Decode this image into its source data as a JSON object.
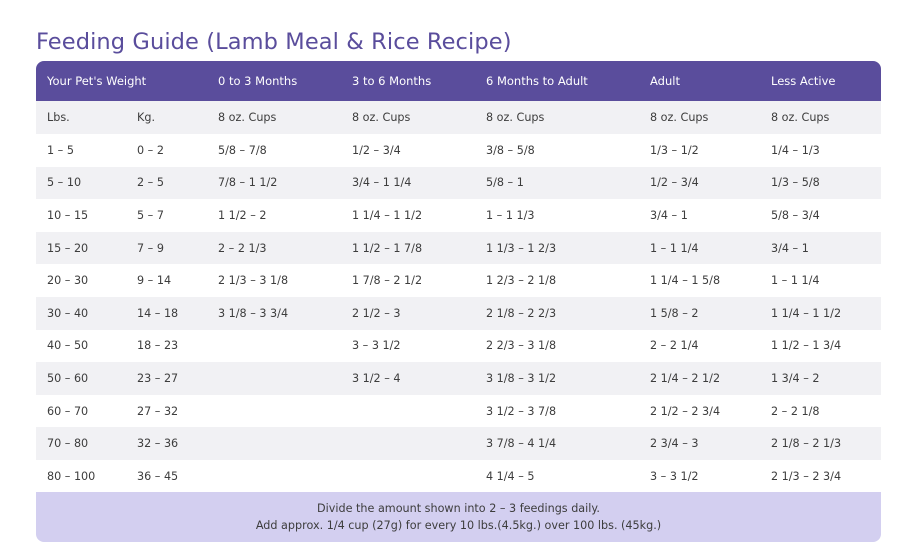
{
  "title": "Feeding Guide (Lamb Meal & Rice Recipe)",
  "header": {
    "weight": "Your Pet's Weight",
    "col_0_3": "0 to 3 Months",
    "col_3_6": "3 to 6 Months",
    "col_6_adult": "6 Months to Adult",
    "col_adult": "Adult",
    "col_less_active": "Less Active"
  },
  "subheader": {
    "lbs": "Lbs.",
    "kg": "Kg.",
    "cups_0_3": "8 oz. Cups",
    "cups_3_6": "8 oz. Cups",
    "cups_6_adult": "8 oz. Cups",
    "cups_adult": "8 oz. Cups",
    "cups_less_active": "8 oz. Cups"
  },
  "rows": [
    {
      "lbs": "1 – 5",
      "kg": "0 – 2",
      "m0_3": "5/8 – 7/8",
      "m3_6": "1/2 – 3/4",
      "m6_adult": "3/8 – 5/8",
      "adult": "1/3 – 1/2",
      "less_active": "1/4 – 1/3"
    },
    {
      "lbs": "5 – 10",
      "kg": "2 – 5",
      "m0_3": "7/8 – 1 1/2",
      "m3_6": "3/4 – 1 1/4",
      "m6_adult": "5/8 – 1",
      "adult": "1/2 – 3/4",
      "less_active": "1/3 – 5/8"
    },
    {
      "lbs": "10 – 15",
      "kg": "5 – 7",
      "m0_3": "1 1/2 – 2",
      "m3_6": "1 1/4 – 1 1/2",
      "m6_adult": "1 – 1 1/3",
      "adult": "3/4 – 1",
      "less_active": "5/8 – 3/4"
    },
    {
      "lbs": "15 – 20",
      "kg": "7 – 9",
      "m0_3": "2 – 2 1/3",
      "m3_6": "1 1/2 – 1 7/8",
      "m6_adult": "1 1/3 – 1 2/3",
      "adult": "1 – 1 1/4",
      "less_active": "3/4 – 1"
    },
    {
      "lbs": "20 – 30",
      "kg": "9 – 14",
      "m0_3": "2 1/3 – 3 1/8",
      "m3_6": "1 7/8 – 2 1/2",
      "m6_adult": "1 2/3 – 2 1/8",
      "adult": "1 1/4 – 1 5/8",
      "less_active": "1 – 1 1/4"
    },
    {
      "lbs": "30 – 40",
      "kg": "14 – 18",
      "m0_3": "3 1/8 – 3 3/4",
      "m3_6": "2 1/2 – 3",
      "m6_adult": "2 1/8  – 2 2/3",
      "adult": "1 5/8 – 2",
      "less_active": "1 1/4 – 1 1/2"
    },
    {
      "lbs": "40 – 50",
      "kg": "18 – 23",
      "m0_3": "",
      "m3_6": "3 – 3 1/2",
      "m6_adult": "2 2/3 – 3 1/8",
      "adult": "2 – 2 1/4",
      "less_active": "1 1/2 – 1 3/4"
    },
    {
      "lbs": "50 – 60",
      "kg": "23 – 27",
      "m0_3": "",
      "m3_6": "3 1/2 – 4",
      "m6_adult": "3 1/8 – 3 1/2",
      "adult": "2 1/4 – 2 1/2",
      "less_active": "1 3/4 – 2"
    },
    {
      "lbs": "60 – 70",
      "kg": "27 – 32",
      "m0_3": "",
      "m3_6": "",
      "m6_adult": "3 1/2 – 3 7/8",
      "adult": "2 1/2 – 2 3/4",
      "less_active": "2 – 2 1/8"
    },
    {
      "lbs": "70 – 80",
      "kg": "32 – 36",
      "m0_3": "",
      "m3_6": "",
      "m6_adult": "3 7/8 – 4 1/4",
      "adult": "2 3/4 – 3",
      "less_active": "2 1/8 – 2 1/3"
    },
    {
      "lbs": "80 – 100",
      "kg": "36 – 45",
      "m0_3": "",
      "m3_6": "",
      "m6_adult": "4 1/4 – 5",
      "adult": "3 – 3 1/2",
      "less_active": "2 1/3 – 2 3/4"
    }
  ],
  "footer": {
    "line1": "Divide the amount shown into 2 – 3 feedings daily.",
    "line2": "Add approx. 1/4 cup (27g) for every 10 lbs.(4.5kg.) over 100 lbs. (45kg.)"
  },
  "colors": {
    "header_bg": "#5a4d9c",
    "title_color": "#5a4d9c",
    "stripe": "#f1f1f4",
    "footer_bg": "#d3cff0"
  }
}
